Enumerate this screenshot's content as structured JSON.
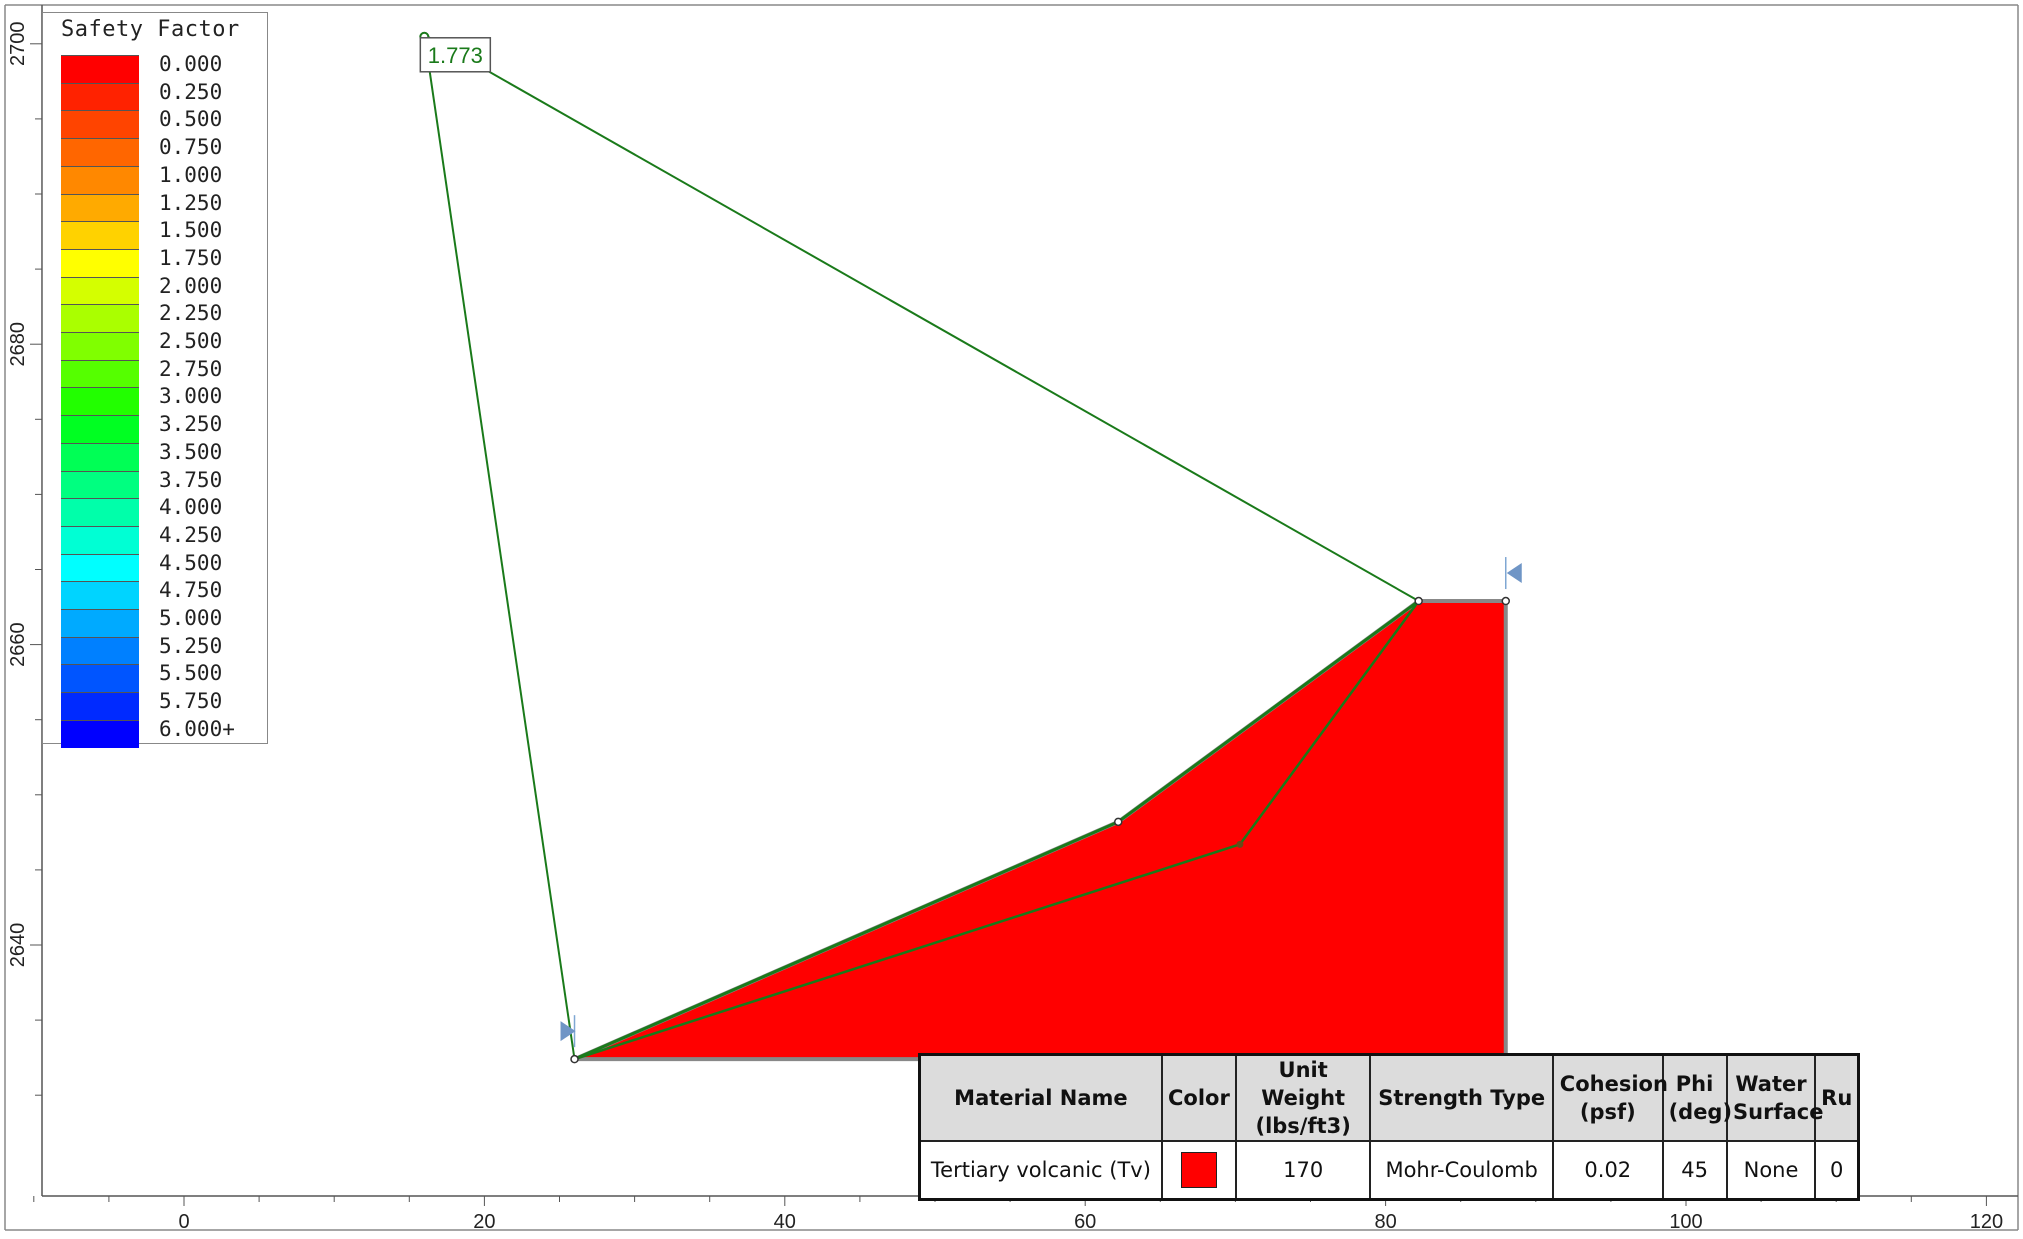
{
  "axes": {
    "x_ticks": [
      "0",
      "20",
      "40",
      "60",
      "80",
      "100",
      "120"
    ],
    "y_ticks": [
      "2640",
      "2660",
      "2680",
      "2700"
    ]
  },
  "legend": {
    "title": "Safety Factor",
    "entries": [
      {
        "label": "0.000",
        "color": "#ff0000"
      },
      {
        "label": "0.250",
        "color": "#ff2200"
      },
      {
        "label": "0.500",
        "color": "#ff4400"
      },
      {
        "label": "0.750",
        "color": "#ff6600"
      },
      {
        "label": "1.000",
        "color": "#ff8800"
      },
      {
        "label": "1.250",
        "color": "#ffaa00"
      },
      {
        "label": "1.500",
        "color": "#ffd200"
      },
      {
        "label": "1.750",
        "color": "#ffff00"
      },
      {
        "label": "2.000",
        "color": "#d4ff00"
      },
      {
        "label": "2.250",
        "color": "#aaff00"
      },
      {
        "label": "2.500",
        "color": "#80ff00"
      },
      {
        "label": "2.750",
        "color": "#55ff00"
      },
      {
        "label": "3.000",
        "color": "#22ff00"
      },
      {
        "label": "3.250",
        "color": "#00ff22"
      },
      {
        "label": "3.500",
        "color": "#00ff55"
      },
      {
        "label": "3.750",
        "color": "#00ff80"
      },
      {
        "label": "4.000",
        "color": "#00ffaa"
      },
      {
        "label": "4.250",
        "color": "#00ffd4"
      },
      {
        "label": "4.500",
        "color": "#00ffff"
      },
      {
        "label": "4.750",
        "color": "#00d4ff"
      },
      {
        "label": "5.000",
        "color": "#00aaff"
      },
      {
        "label": "5.250",
        "color": "#0080ff"
      },
      {
        "label": "5.500",
        "color": "#0055ff"
      },
      {
        "label": "5.750",
        "color": "#002aff"
      },
      {
        "label": "6.000+",
        "color": "#0000ff"
      }
    ]
  },
  "geometry": {
    "slope_boundary": [
      [
        26,
        2632.4
      ],
      [
        62.2,
        2648.2
      ],
      [
        82.2,
        2662.9
      ],
      [
        88,
        2662.9
      ],
      [
        88,
        2632.4
      ],
      [
        26,
        2632.4
      ]
    ],
    "slip_surface": [
      [
        26,
        2632.4
      ],
      [
        70.3,
        2646.7
      ],
      [
        82.2,
        2662.9
      ]
    ],
    "slip_center": [
      16,
      2700.6
    ],
    "left_limit_x": 26,
    "right_limit_x": 88,
    "material_color": "#ff0000",
    "slip_color": "#1a7a1a"
  },
  "safety_factor_label": "1.773",
  "material_table": {
    "headers": [
      "Material Name",
      "Color",
      "Unit Weight (lbs/ft3)",
      "Strength Type",
      "Cohesion (psf)",
      "Phi (deg)",
      "Water Surface",
      "Ru"
    ],
    "rows": [
      {
        "name": "Tertiary volcanic (Tv)",
        "color": "#ff0000",
        "unit_weight": "170",
        "strength_type": "Mohr-Coulomb",
        "cohesion": "0.02",
        "phi": "45",
        "water_surface": "None",
        "ru": "0"
      }
    ]
  }
}
